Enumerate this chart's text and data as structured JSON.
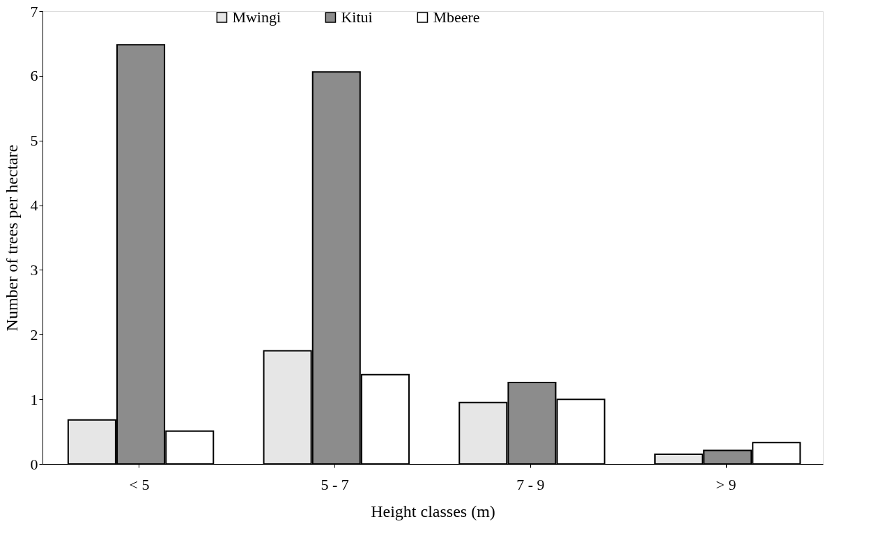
{
  "chart_data": {
    "type": "bar",
    "xlabel": "Height classes (m)",
    "ylabel": "Number of trees per hectare",
    "categories": [
      "< 5",
      "5 - 7",
      "7 - 9",
      "> 9"
    ],
    "series": [
      {
        "name": "Mwingi",
        "color": "#e6e6e6",
        "values": [
          0.68,
          1.75,
          0.95,
          0.15
        ]
      },
      {
        "name": "Kitui",
        "color": "#8c8c8c",
        "values": [
          6.48,
          6.06,
          1.26,
          0.21
        ]
      },
      {
        "name": "Mbeere",
        "color": "#ffffff",
        "values": [
          0.51,
          1.38,
          1.0,
          0.33
        ]
      }
    ],
    "ylim": [
      0,
      7
    ],
    "yticks": [
      0,
      1,
      2,
      3,
      4,
      5,
      6,
      7
    ],
    "grid": false,
    "legend": "top"
  }
}
